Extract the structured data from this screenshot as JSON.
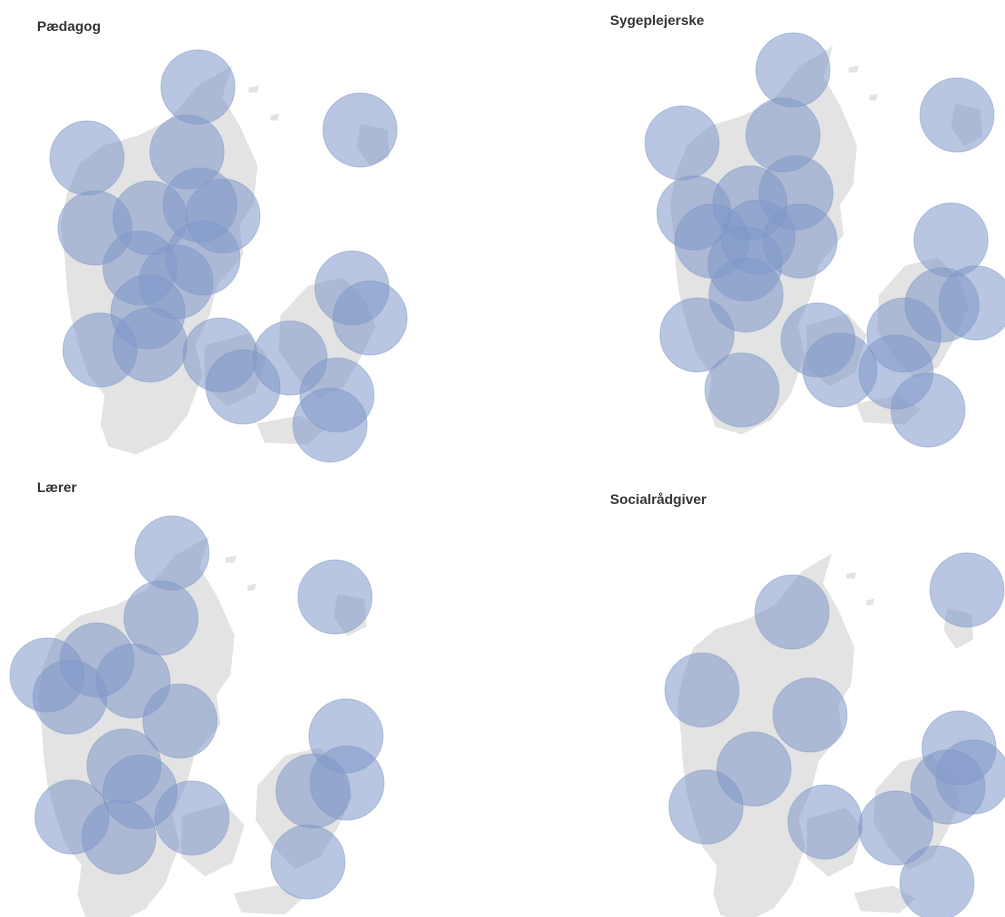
{
  "panels": [
    {
      "title": "Pædagog"
    },
    {
      "title": "Sygeplejerske"
    },
    {
      "title": "Lærer"
    },
    {
      "title": "Socialrådgiver"
    }
  ],
  "colors": {
    "bubble_fill": "#7f97c9",
    "land": "#e3e3e3",
    "title_text": "#333333"
  }
}
